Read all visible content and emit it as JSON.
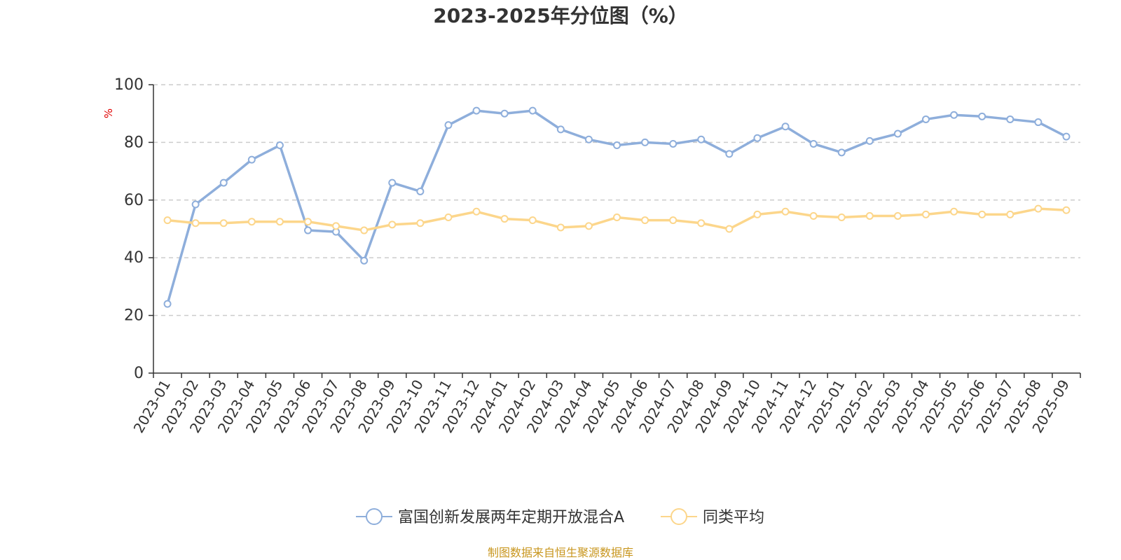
{
  "chart_data": {
    "type": "line",
    "title": "2023-2025年分位图（%）",
    "ylabel": "%",
    "ylim": [
      0,
      100
    ],
    "yticks": [
      "0",
      "20",
      "40",
      "60",
      "80",
      "100"
    ],
    "grid": true,
    "legend_position": "bottom",
    "categories": [
      "2023-01",
      "2023-02",
      "2023-03",
      "2023-04",
      "2023-05",
      "2023-06",
      "2023-07",
      "2023-08",
      "2023-09",
      "2023-10",
      "2023-11",
      "2023-12",
      "2024-01",
      "2024-02",
      "2024-03",
      "2024-04",
      "2024-05",
      "2024-06",
      "2024-07",
      "2024-08",
      "2024-09",
      "2024-10",
      "2024-11",
      "2024-12",
      "2025-01",
      "2025-02",
      "2025-03",
      "2025-04",
      "2025-05",
      "2025-06",
      "2025-07",
      "2025-08",
      "2025-09"
    ],
    "series": [
      {
        "name": "富国创新发展两年定期开放混合A",
        "color": "#8eaedb",
        "values": [
          24,
          58.5,
          66,
          74,
          79,
          49.5,
          49,
          39,
          66,
          63,
          86,
          91,
          90,
          91,
          84.5,
          81,
          79,
          80,
          79.5,
          81,
          76,
          81.5,
          85.5,
          79.5,
          76.5,
          80.5,
          83,
          88,
          89.5,
          89,
          88,
          87,
          82
        ]
      },
      {
        "name": "同类平均",
        "color": "#fcd68b",
        "values": [
          53,
          52,
          52,
          52.5,
          52.5,
          52.5,
          51,
          49.5,
          51.5,
          52,
          54,
          56,
          53.5,
          53,
          50.5,
          51,
          54,
          53,
          53,
          52,
          50,
          55,
          56,
          54.5,
          54,
          54.5,
          54.5,
          55,
          56,
          55,
          55,
          57,
          56.5
        ]
      }
    ]
  },
  "source": "制图数据来自恒生聚源数据库"
}
